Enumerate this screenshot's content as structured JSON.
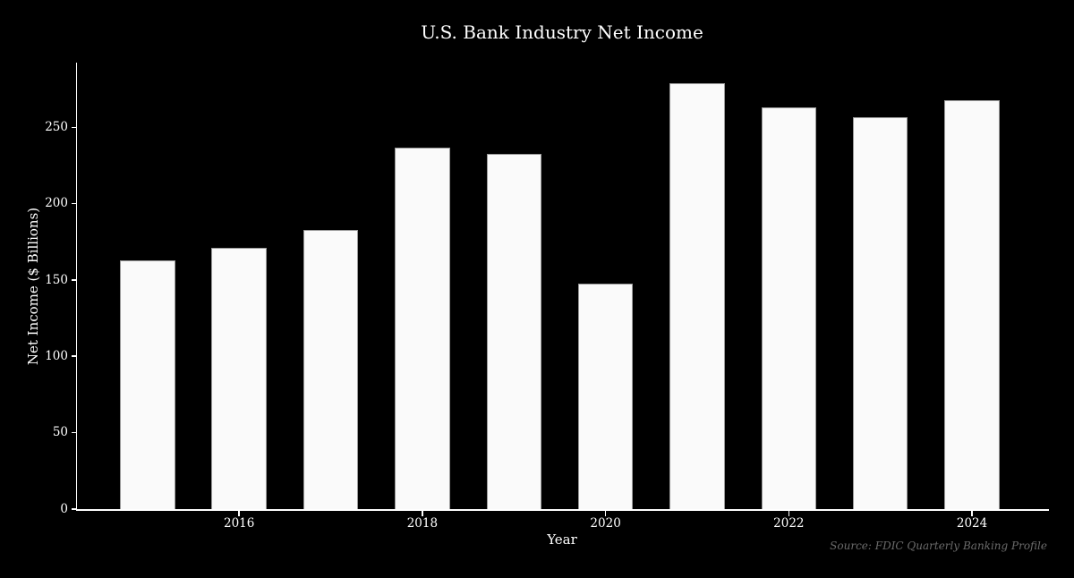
{
  "chart_data": {
    "type": "bar",
    "title": "U.S. Bank Industry Net Income",
    "xlabel": "Year",
    "ylabel": "Net Income ($ Billions)",
    "source_note": "Source: FDIC Quarterly Banking Profile",
    "categories": [
      "2015",
      "2016",
      "2017",
      "2018",
      "2019",
      "2020",
      "2021",
      "2022",
      "2023",
      "2024"
    ],
    "values": [
      163,
      171,
      183,
      237,
      233,
      148,
      279,
      263,
      257,
      268
    ],
    "xticks": [
      "2016",
      "2018",
      "2020",
      "2022",
      "2024"
    ],
    "yticks": [
      0,
      50,
      100,
      150,
      200,
      250
    ],
    "xlim": [
      2014.23,
      2024.82
    ],
    "ylim": [
      0,
      292.5
    ],
    "bar_width_ratio": 0.6,
    "grid": false,
    "legend": "none",
    "style": {
      "background": "#000000",
      "bar_fill": "#fafafa",
      "bar_edge": "#9a9a9a",
      "axis_color": "#ffffff",
      "text_color": "#ffffff",
      "source_color": "#6b6b6b"
    }
  }
}
